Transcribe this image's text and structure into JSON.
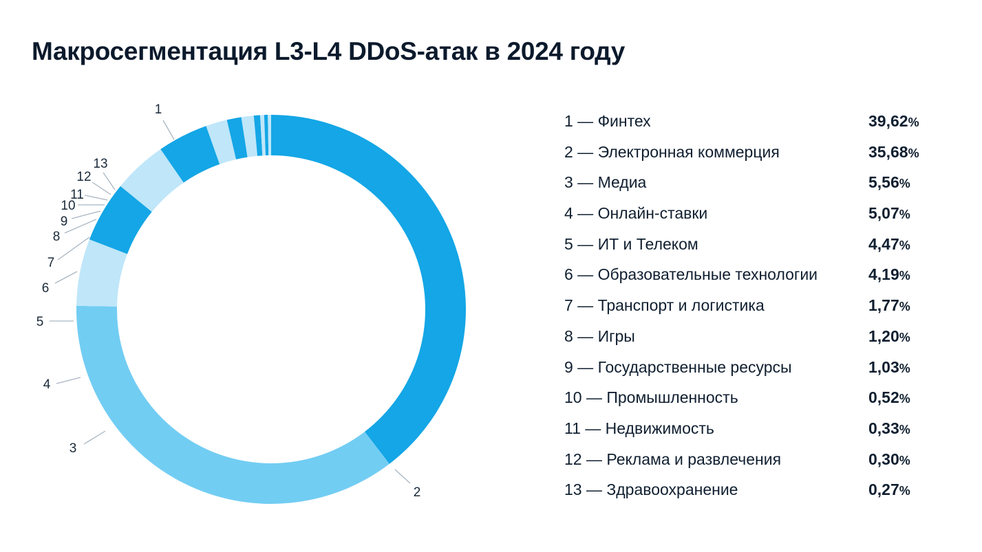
{
  "title": "Макросегментация L3-L4 DDoS-атак в 2024 году",
  "colors": {
    "dark": "#14a6e6",
    "mid": "#72cdf3",
    "light": "#bfe6f9"
  },
  "chart_data": {
    "type": "pie",
    "variant": "donut",
    "title": "Макросегментация L3-L4 DDoS-атак в 2024 году",
    "unit": "%",
    "categories": [
      "Финтех",
      "Электронная коммерция",
      "Медиа",
      "Онлайн-ставки",
      "ИТ и Телеком",
      "Образовательные технологии",
      "Транспорт и логистика",
      "Игры",
      "Государственные ресурсы",
      "Промышленность",
      "Недвижимость",
      "Реклама и развлечения",
      "Здравоохранение"
    ],
    "values": [
      39.62,
      35.68,
      5.56,
      5.07,
      4.47,
      4.19,
      1.77,
      1.2,
      1.03,
      0.52,
      0.33,
      0.3,
      0.27
    ],
    "slices": [
      {
        "num": "1",
        "label": "1 — Финтех",
        "name": "Финтех",
        "value": 39.62,
        "value_text": "39,62",
        "color": "#14a6e6"
      },
      {
        "num": "2",
        "label": "2 — Электронная коммерция",
        "name": "Электронная коммерция",
        "value": 35.68,
        "value_text": "35,68",
        "color": "#72cdf3"
      },
      {
        "num": "3",
        "label": "3 — Медиа",
        "name": "Медиа",
        "value": 5.56,
        "value_text": "5,56",
        "color": "#bfe6f9"
      },
      {
        "num": "4",
        "label": "4 — Онлайн-ставки",
        "name": "Онлайн-ставки",
        "value": 5.07,
        "value_text": "5,07",
        "color": "#14a6e6"
      },
      {
        "num": "5",
        "label": "5 — ИТ и Телеком",
        "name": "ИТ и Телеком",
        "value": 4.47,
        "value_text": "4,47",
        "color": "#bfe6f9"
      },
      {
        "num": "6",
        "label": "6 — Образовательные технологии",
        "name": "Образовательные технологии",
        "value": 4.19,
        "value_text": "4,19",
        "color": "#14a6e6"
      },
      {
        "num": "7",
        "label": "7 — Транспорт и логистика",
        "name": "Транспорт и логистика",
        "value": 1.77,
        "value_text": "1,77",
        "color": "#bfe6f9"
      },
      {
        "num": "8",
        "label": "8 — Игры",
        "name": "Игры",
        "value": 1.2,
        "value_text": "1,20",
        "color": "#14a6e6"
      },
      {
        "num": "9",
        "label": "9 — Государственные ресурсы",
        "name": "Государственные ресурсы",
        "value": 1.03,
        "value_text": "1,03",
        "color": "#bfe6f9"
      },
      {
        "num": "10",
        "label": "10 — Промышленность",
        "name": "Промышленность",
        "value": 0.52,
        "value_text": "0,52",
        "color": "#14a6e6"
      },
      {
        "num": "11",
        "label": "11 — Недвижимость",
        "name": "Недвижимость",
        "value": 0.33,
        "value_text": "0,33",
        "color": "#bfe6f9"
      },
      {
        "num": "12",
        "label": "12 — Реклама и развлечения",
        "name": "Реклама и развлечения",
        "value": 0.3,
        "value_text": "0,30",
        "color": "#14a6e6"
      },
      {
        "num": "13",
        "label": "13 — Здравоохранение",
        "name": "Здравоохранение",
        "value": 0.27,
        "value_text": "0,27",
        "color": "#bfe6f9"
      }
    ],
    "legend_position": "right"
  }
}
